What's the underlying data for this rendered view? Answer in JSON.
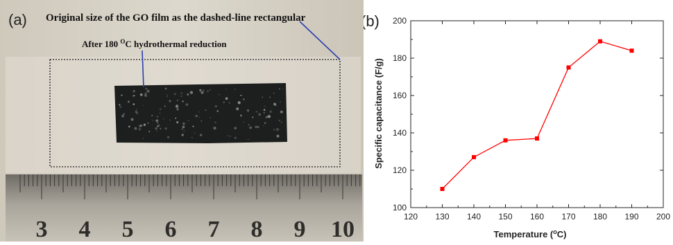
{
  "panel_a": {
    "label": "(a)",
    "caption_top": "Original size of the GO film as the dashed-line rectangular",
    "caption_inner_pre": "After 180 ",
    "caption_inner_sup": "O",
    "caption_inner_post": "C hydrothermal reduction",
    "ruler_numbers": [
      "3",
      "4",
      "5",
      "6",
      "7",
      "8",
      "9",
      "10"
    ],
    "colors": {
      "background": "#d6d0c4",
      "film": "#1d1f1e",
      "ruler": "#8b8880",
      "pointer": "#2b3fae"
    }
  },
  "chart_data": {
    "type": "line",
    "panel_label": "(b)",
    "xlabel_pre": "Temperature (",
    "xlabel_sup": "o",
    "xlabel_post": "C)",
    "ylabel": "Specific capacitance (F/g)",
    "xlim": [
      120,
      200
    ],
    "ylim": [
      100,
      200
    ],
    "xticks": [
      120,
      130,
      140,
      150,
      160,
      170,
      180,
      190,
      200
    ],
    "yticks": [
      100,
      120,
      140,
      160,
      180,
      200
    ],
    "series": [
      {
        "x": [
          130,
          140,
          150,
          160,
          170,
          180,
          190
        ],
        "y": [
          110,
          127,
          136,
          137,
          175,
          189,
          184
        ]
      }
    ],
    "color": "#ff0000",
    "marker": "square"
  }
}
